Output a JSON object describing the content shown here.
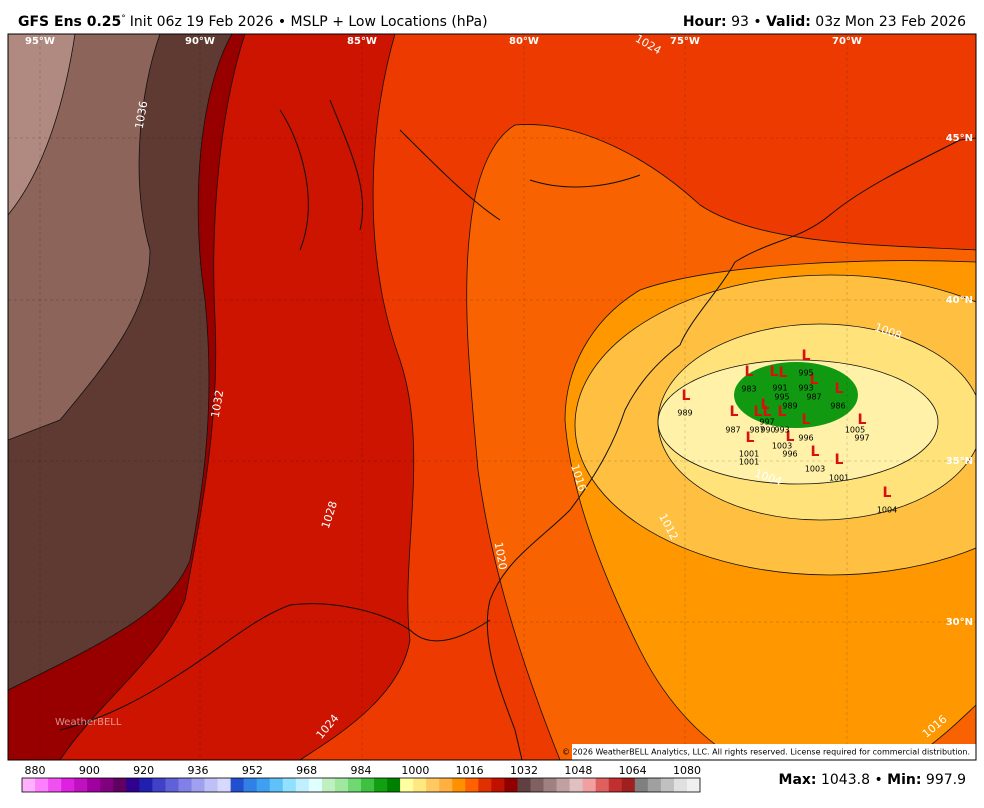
{
  "header": {
    "model": "GFS Ens 0.25",
    "degree": "°",
    "description": "Init 06z 19 Feb 2026 • MSLP + Low Locations (hPa)",
    "hour_label": "Hour:",
    "hour": "93",
    "separator": "•",
    "valid_label": "Valid:",
    "valid": "03z Mon 23 Feb 2026"
  },
  "longitudes": [
    "95°W",
    "90°W",
    "85°W",
    "80°W",
    "75°W",
    "70°W"
  ],
  "latitudes": [
    "45°N",
    "40°N",
    "35°N",
    "30°N"
  ],
  "contour_labels": [
    1036,
    1032,
    1028,
    1024,
    1024,
    1020,
    1016,
    1016,
    1012,
    1008,
    1004
  ],
  "low_symbol": "L",
  "low_values": [
    995,
    983,
    991,
    995,
    993,
    987,
    986,
    989,
    989,
    997,
    987,
    987,
    990,
    993,
    996,
    1005,
    997,
    1001,
    1001,
    1003,
    996,
    1003,
    1001,
    1004
  ],
  "logo": "WeatherBELL",
  "copyright": "© 2026 WeatherBELL Analytics, LLC. All rights reserved. License required for commercial distribution.",
  "colorbar": [
    880,
    900,
    920,
    936,
    952,
    968,
    984,
    1000,
    1016,
    1032,
    1048,
    1064,
    1080
  ],
  "footer": {
    "max_label": "Max:",
    "max": "1043.8",
    "separator": "•",
    "min_label": "Min:",
    "min": "997.9"
  }
}
